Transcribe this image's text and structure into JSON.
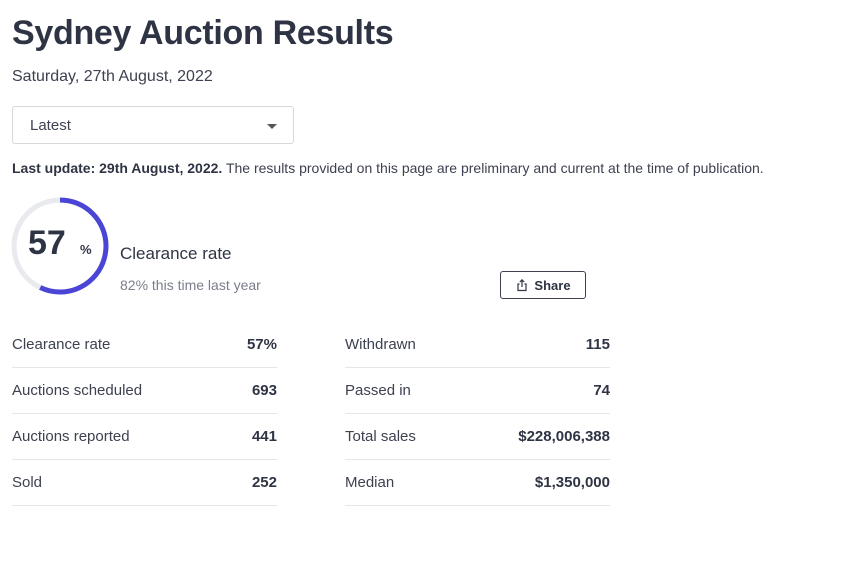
{
  "header": {
    "title": "Sydney Auction Results",
    "date": "Saturday, 27th August, 2022"
  },
  "filter": {
    "selected": "Latest"
  },
  "update": {
    "bold": "Last update: 29th August, 2022.",
    "text": "The results provided on this page are preliminary and current at the time of publication."
  },
  "clearance": {
    "value": 57,
    "value_text": "57",
    "unit": "%",
    "label": "Clearance rate",
    "comparison": "82% this time last year",
    "gauge_color": "#4b45d6",
    "track_color": "#e8eaee"
  },
  "share": {
    "label": "Share",
    "icon": "share-icon"
  },
  "stats_left": [
    {
      "label": "Clearance rate",
      "value": "57%"
    },
    {
      "label": "Auctions scheduled",
      "value": "693"
    },
    {
      "label": "Auctions reported",
      "value": "441"
    },
    {
      "label": "Sold",
      "value": "252"
    }
  ],
  "stats_right": [
    {
      "label": "Withdrawn",
      "value": "115"
    },
    {
      "label": "Passed in",
      "value": "74"
    },
    {
      "label": "Total sales",
      "value": "$228,006,388"
    },
    {
      "label": "Median",
      "value": "$1,350,000"
    }
  ]
}
